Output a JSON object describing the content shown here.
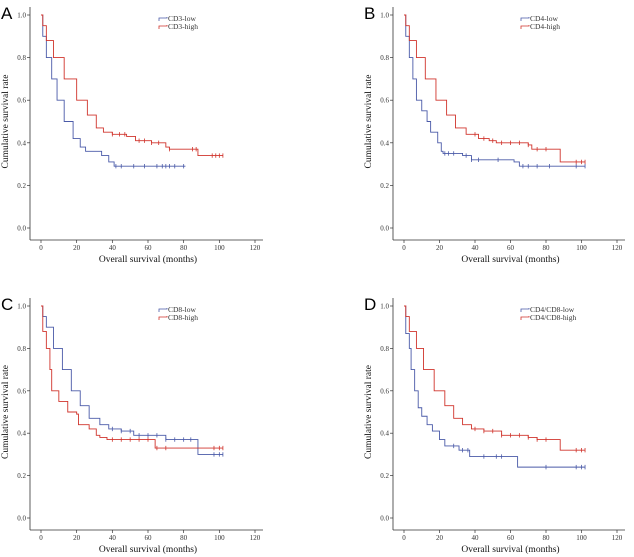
{
  "colors": {
    "low": "#4a5aa8",
    "high": "#d0342c"
  },
  "chart_data": [
    {
      "type": "line",
      "subtype": "kaplan-meier",
      "panel": "A",
      "xlabel": "Overall survival (months)",
      "ylabel": "Cumulative survival rate",
      "xlim": [
        0,
        120
      ],
      "ylim": [
        0,
        1
      ],
      "xticks": [
        "0",
        "20",
        "40",
        "60",
        "80",
        "100",
        "120"
      ],
      "yticks": [
        "0.0",
        "0.2",
        "0.4",
        "0.6",
        "0.8",
        "1.0"
      ],
      "legend": "top-right",
      "grid": false,
      "series": [
        {
          "name": "CD3-low",
          "color": "#4a5aa8",
          "steps": [
            [
              0,
              1
            ],
            [
              1,
              0.9
            ],
            [
              3,
              0.8
            ],
            [
              6,
              0.7
            ],
            [
              9,
              0.6
            ],
            [
              13,
              0.5
            ],
            [
              18,
              0.42
            ],
            [
              22,
              0.38
            ],
            [
              25,
              0.36
            ],
            [
              34,
              0.34
            ],
            [
              38,
              0.31
            ],
            [
              41,
              0.29
            ],
            [
              81,
              0.29
            ]
          ],
          "censored": [
            42,
            45,
            52,
            58,
            65,
            68,
            70,
            72,
            75,
            80
          ]
        },
        {
          "name": "CD3-high",
          "color": "#d0342c",
          "steps": [
            [
              0,
              1
            ],
            [
              1,
              0.95
            ],
            [
              3,
              0.88
            ],
            [
              7,
              0.8
            ],
            [
              13,
              0.7
            ],
            [
              20,
              0.6
            ],
            [
              26,
              0.53
            ],
            [
              31,
              0.47
            ],
            [
              35,
              0.45
            ],
            [
              40,
              0.44
            ],
            [
              48,
              0.43
            ],
            [
              53,
              0.41
            ],
            [
              62,
              0.4
            ],
            [
              70,
              0.38
            ],
            [
              72,
              0.37
            ],
            [
              88,
              0.34
            ],
            [
              102,
              0.34
            ]
          ],
          "censored": [
            40,
            44,
            47,
            55,
            58,
            62,
            66,
            72,
            85,
            87,
            96,
            98,
            100,
            102
          ]
        }
      ]
    },
    {
      "type": "line",
      "subtype": "kaplan-meier",
      "panel": "B",
      "xlabel": "Overall survival (months)",
      "ylabel": "Cumulative survival rate",
      "xlim": [
        0,
        120
      ],
      "ylim": [
        0,
        1
      ],
      "xticks": [
        "0",
        "20",
        "40",
        "60",
        "80",
        "100",
        "120"
      ],
      "yticks": [
        "0.0",
        "0.2",
        "0.4",
        "0.6",
        "0.8",
        "1.0"
      ],
      "legend": "top-right",
      "grid": false,
      "series": [
        {
          "name": "CD4-low",
          "color": "#4a5aa8",
          "steps": [
            [
              0,
              1
            ],
            [
              1,
              0.9
            ],
            [
              3,
              0.8
            ],
            [
              5,
              0.7
            ],
            [
              7,
              0.6
            ],
            [
              10,
              0.55
            ],
            [
              13,
              0.5
            ],
            [
              15,
              0.45
            ],
            [
              19,
              0.4
            ],
            [
              21,
              0.36
            ],
            [
              22,
              0.35
            ],
            [
              33,
              0.34
            ],
            [
              38,
              0.32
            ],
            [
              62,
              0.31
            ],
            [
              65,
              0.29
            ],
            [
              102,
              0.29
            ]
          ],
          "censored": [
            23,
            25,
            28,
            35,
            38,
            42,
            53,
            67,
            70,
            75,
            82,
            97,
            102
          ]
        },
        {
          "name": "CD4-high",
          "color": "#d0342c",
          "steps": [
            [
              0,
              1
            ],
            [
              1,
              0.95
            ],
            [
              3,
              0.88
            ],
            [
              7,
              0.8
            ],
            [
              12,
              0.7
            ],
            [
              18,
              0.6
            ],
            [
              24,
              0.53
            ],
            [
              29,
              0.47
            ],
            [
              35,
              0.44
            ],
            [
              42,
              0.42
            ],
            [
              48,
              0.41
            ],
            [
              52,
              0.4
            ],
            [
              70,
              0.39
            ],
            [
              72,
              0.37
            ],
            [
              88,
              0.31
            ],
            [
              102,
              0.31
            ]
          ],
          "censored": [
            40,
            45,
            50,
            55,
            60,
            65,
            70,
            75,
            80,
            97,
            100,
            102
          ]
        }
      ]
    },
    {
      "type": "line",
      "subtype": "kaplan-meier",
      "panel": "C",
      "xlabel": "Overall survival (months)",
      "ylabel": "Cumulative survival rate",
      "xlim": [
        0,
        120
      ],
      "ylim": [
        0,
        1
      ],
      "xticks": [
        "0",
        "20",
        "40",
        "60",
        "80",
        "100",
        "120"
      ],
      "yticks": [
        "0.0",
        "0.2",
        "0.4",
        "0.6",
        "0.8",
        "1.0"
      ],
      "legend": "top-right",
      "grid": false,
      "series": [
        {
          "name": "CD8-low",
          "color": "#4a5aa8",
          "steps": [
            [
              0,
              1
            ],
            [
              1,
              0.95
            ],
            [
              3,
              0.9
            ],
            [
              7,
              0.8
            ],
            [
              12,
              0.7
            ],
            [
              17,
              0.6
            ],
            [
              22,
              0.53
            ],
            [
              27,
              0.47
            ],
            [
              33,
              0.44
            ],
            [
              38,
              0.42
            ],
            [
              45,
              0.41
            ],
            [
              52,
              0.39
            ],
            [
              70,
              0.37
            ],
            [
              88,
              0.3
            ],
            [
              102,
              0.3
            ]
          ],
          "censored": [
            40,
            45,
            50,
            55,
            60,
            65,
            70,
            75,
            80,
            84,
            97,
            100,
            102
          ]
        },
        {
          "name": "CD8-high",
          "color": "#d0342c",
          "steps": [
            [
              0,
              1
            ],
            [
              1,
              0.88
            ],
            [
              3,
              0.8
            ],
            [
              5,
              0.7
            ],
            [
              6,
              0.6
            ],
            [
              10,
              0.55
            ],
            [
              15,
              0.5
            ],
            [
              20,
              0.49
            ],
            [
              21,
              0.44
            ],
            [
              27,
              0.42
            ],
            [
              31,
              0.39
            ],
            [
              33,
              0.38
            ],
            [
              37,
              0.37
            ],
            [
              64,
              0.33
            ],
            [
              102,
              0.33
            ]
          ],
          "censored": [
            40,
            45,
            50,
            55,
            60,
            65,
            70,
            97,
            100,
            102
          ]
        }
      ]
    },
    {
      "type": "line",
      "subtype": "kaplan-meier",
      "panel": "D",
      "xlabel": "Overall survival (months)",
      "ylabel": "Cumulative survival rate",
      "xlim": [
        0,
        120
      ],
      "ylim": [
        0,
        1
      ],
      "xticks": [
        "0",
        "20",
        "40",
        "60",
        "80",
        "100",
        "120"
      ],
      "yticks": [
        "0.0",
        "0.2",
        "0.4",
        "0.6",
        "0.8",
        "1.0"
      ],
      "legend": "top-right",
      "grid": false,
      "series": [
        {
          "name": "CD4/CD8-low",
          "color": "#4a5aa8",
          "steps": [
            [
              0,
              1
            ],
            [
              1,
              0.87
            ],
            [
              3,
              0.8
            ],
            [
              4,
              0.7
            ],
            [
              6,
              0.6
            ],
            [
              8,
              0.52
            ],
            [
              10,
              0.48
            ],
            [
              13,
              0.44
            ],
            [
              16,
              0.41
            ],
            [
              20,
              0.37
            ],
            [
              23,
              0.34
            ],
            [
              31,
              0.32
            ],
            [
              37,
              0.29
            ],
            [
              64,
              0.24
            ],
            [
              102,
              0.24
            ]
          ],
          "censored": [
            28,
            33,
            36,
            45,
            52,
            55,
            80,
            97,
            100,
            102
          ]
        },
        {
          "name": "CD4/CD8-high",
          "color": "#d0342c",
          "steps": [
            [
              0,
              1
            ],
            [
              1,
              0.95
            ],
            [
              3,
              0.88
            ],
            [
              7,
              0.8
            ],
            [
              11,
              0.7
            ],
            [
              17,
              0.6
            ],
            [
              23,
              0.53
            ],
            [
              28,
              0.47
            ],
            [
              33,
              0.44
            ],
            [
              38,
              0.42
            ],
            [
              45,
              0.41
            ],
            [
              55,
              0.39
            ],
            [
              70,
              0.38
            ],
            [
              75,
              0.37
            ],
            [
              88,
              0.32
            ],
            [
              102,
              0.32
            ]
          ],
          "censored": [
            40,
            45,
            50,
            55,
            60,
            65,
            70,
            75,
            80,
            97,
            100,
            102
          ]
        }
      ]
    }
  ]
}
